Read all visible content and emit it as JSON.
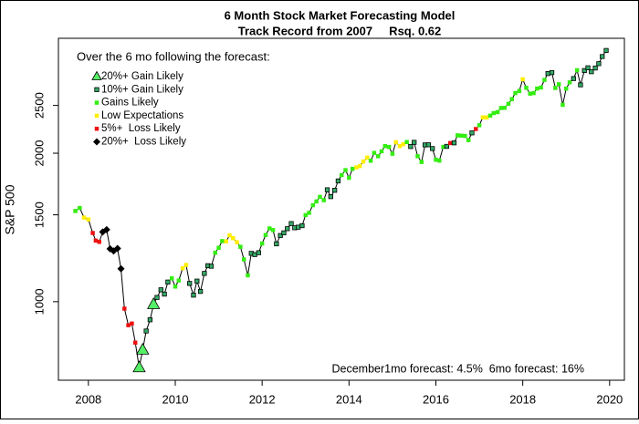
{
  "chart_data": {
    "type": "signal-line",
    "title": "6 Month Stock Market Forecasting Model",
    "subtitle": "Track Record from 2007     Rsq. 0.62",
    "ylabel": "S&P 500",
    "annotation": "December1mo forecast: 4.5%  6mo forecast: 16%",
    "legend_title": "Over the 6 mo following the forecast:",
    "legend": [
      {
        "label": "20%+ Gain Likely",
        "shape": "triangle",
        "color": "#55ee66"
      },
      {
        "label": "10%+ Gain Likely",
        "shape": "square",
        "color": "#33aa66"
      },
      {
        "label": "Gains Likely",
        "shape": "square-plain",
        "color": "#33ee11"
      },
      {
        "label": "Low Expectations",
        "shape": "square-plain",
        "color": "#ffee00"
      },
      {
        "label": "5%+  Loss Likely",
        "shape": "square-plain",
        "color": "#ee1111"
      },
      {
        "label": "20%+  Loss Likely",
        "shape": "diamond",
        "color": "#000000"
      }
    ],
    "legend_position": "top-left",
    "ylog": true,
    "xlim": [
      2007.31,
      2020.34
    ],
    "ylim": [
      693,
      3420
    ],
    "xticks": [
      2008,
      2010,
      2012,
      2014,
      2016,
      2018,
      2020
    ],
    "yticks": [
      1000,
      1500,
      2000,
      2500
    ],
    "x": [
      2007.7,
      2007.8,
      2007.9,
      2008.0,
      2008.1,
      2008.17,
      2008.25,
      2008.33,
      2008.42,
      2008.5,
      2008.58,
      2008.67,
      2008.75,
      2008.83,
      2008.92,
      2009.0,
      2009.08,
      2009.17,
      2009.25,
      2009.33,
      2009.42,
      2009.5,
      2009.58,
      2009.67,
      2009.75,
      2009.83,
      2009.92,
      2010.0,
      2010.08,
      2010.17,
      2010.25,
      2010.33,
      2010.42,
      2010.5,
      2010.58,
      2010.67,
      2010.75,
      2010.83,
      2010.92,
      2011.0,
      2011.08,
      2011.17,
      2011.25,
      2011.33,
      2011.42,
      2011.5,
      2011.58,
      2011.67,
      2011.75,
      2011.83,
      2011.92,
      2012.0,
      2012.08,
      2012.17,
      2012.25,
      2012.33,
      2012.42,
      2012.5,
      2012.58,
      2012.67,
      2012.75,
      2012.83,
      2012.92,
      2013.0,
      2013.08,
      2013.17,
      2013.25,
      2013.33,
      2013.42,
      2013.5,
      2013.58,
      2013.67,
      2013.75,
      2013.83,
      2013.92,
      2014.0,
      2014.08,
      2014.17,
      2014.25,
      2014.33,
      2014.42,
      2014.5,
      2014.58,
      2014.67,
      2014.75,
      2014.83,
      2014.92,
      2015.0,
      2015.08,
      2015.17,
      2015.25,
      2015.33,
      2015.42,
      2015.5,
      2015.58,
      2015.67,
      2015.75,
      2015.83,
      2015.92,
      2016.0,
      2016.08,
      2016.17,
      2016.25,
      2016.33,
      2016.42,
      2016.5,
      2016.58,
      2016.67,
      2016.75,
      2016.83,
      2016.92,
      2017.0,
      2017.08,
      2017.17,
      2017.25,
      2017.33,
      2017.42,
      2017.5,
      2017.58,
      2017.67,
      2017.75,
      2017.83,
      2017.92,
      2018.0,
      2018.08,
      2018.17,
      2018.25,
      2018.33,
      2018.42,
      2018.5,
      2018.58,
      2018.67,
      2018.75,
      2018.83,
      2018.92,
      2019.0,
      2019.08,
      2019.17,
      2019.25,
      2019.33,
      2019.42,
      2019.5,
      2019.58,
      2019.67,
      2019.75,
      2019.83,
      2019.92
    ],
    "values": [
      1527,
      1549,
      1481,
      1468,
      1378,
      1330,
      1322,
      1385,
      1400,
      1280,
      1267,
      1282,
      1166,
      968,
      896,
      903,
      826,
      735,
      798,
      872,
      919,
      987,
      1020,
      1057,
      1036,
      1096,
      1115,
      1073,
      1104,
      1169,
      1187,
      1089,
      1031,
      1101,
      1049,
      1141,
      1183,
      1180,
      1257,
      1286,
      1327,
      1325,
      1363,
      1345,
      1320,
      1292,
      1218,
      1131,
      1253,
      1246,
      1257,
      1312,
      1365,
      1408,
      1397,
      1310,
      1362,
      1379,
      1406,
      1440,
      1412,
      1416,
      1426,
      1498,
      1514,
      1569,
      1597,
      1631,
      1606,
      1686,
      1633,
      1682,
      1757,
      1806,
      1848,
      1783,
      1859,
      1872,
      1884,
      1924,
      1960,
      1931,
      2003,
      1972,
      2018,
      2068,
      2059,
      1995,
      2105,
      2068,
      2086,
      2107,
      2063,
      2104,
      1972,
      1920,
      2079,
      2080,
      2044,
      1940,
      1932,
      2060,
      2065,
      2097,
      2099,
      2174,
      2171,
      2168,
      2126,
      2199,
      2239,
      2279,
      2364,
      2363,
      2384,
      2412,
      2423,
      2470,
      2472,
      2519,
      2575,
      2648,
      2674,
      2824,
      2714,
      2641,
      2648,
      2705,
      2718,
      2816,
      2901,
      2914,
      2712,
      2760,
      2507,
      2704,
      2784,
      2834,
      2946,
      2752,
      2942,
      2980,
      2926,
      2977,
      3038,
      3141,
      3231
    ],
    "signal": [
      2,
      2,
      3,
      3,
      4,
      4,
      4,
      5,
      5,
      5,
      5,
      5,
      5,
      4,
      4,
      4,
      4,
      0,
      0,
      1,
      1,
      0,
      1,
      1,
      1,
      1,
      2,
      2,
      2,
      3,
      3,
      1,
      1,
      1,
      1,
      1,
      1,
      1,
      2,
      2,
      2,
      3,
      3,
      3,
      3,
      2,
      2,
      2,
      1,
      1,
      1,
      2,
      2,
      2,
      2,
      1,
      1,
      1,
      1,
      1,
      1,
      1,
      1,
      2,
      2,
      2,
      2,
      2,
      2,
      1,
      1,
      1,
      1,
      2,
      2,
      2,
      2,
      3,
      3,
      3,
      3,
      2,
      2,
      2,
      2,
      2,
      2,
      2,
      3,
      3,
      3,
      2,
      1,
      1,
      2,
      2,
      1,
      1,
      1,
      2,
      2,
      2,
      1,
      4,
      1,
      2,
      2,
      2,
      2,
      1,
      4,
      2,
      3,
      3,
      2,
      2,
      2,
      2,
      2,
      2,
      2,
      2,
      2,
      3,
      2,
      2,
      2,
      2,
      2,
      2,
      1,
      1,
      2,
      2,
      2,
      2,
      2,
      1,
      2,
      1,
      1,
      1,
      1,
      1,
      1,
      1,
      1
    ]
  }
}
